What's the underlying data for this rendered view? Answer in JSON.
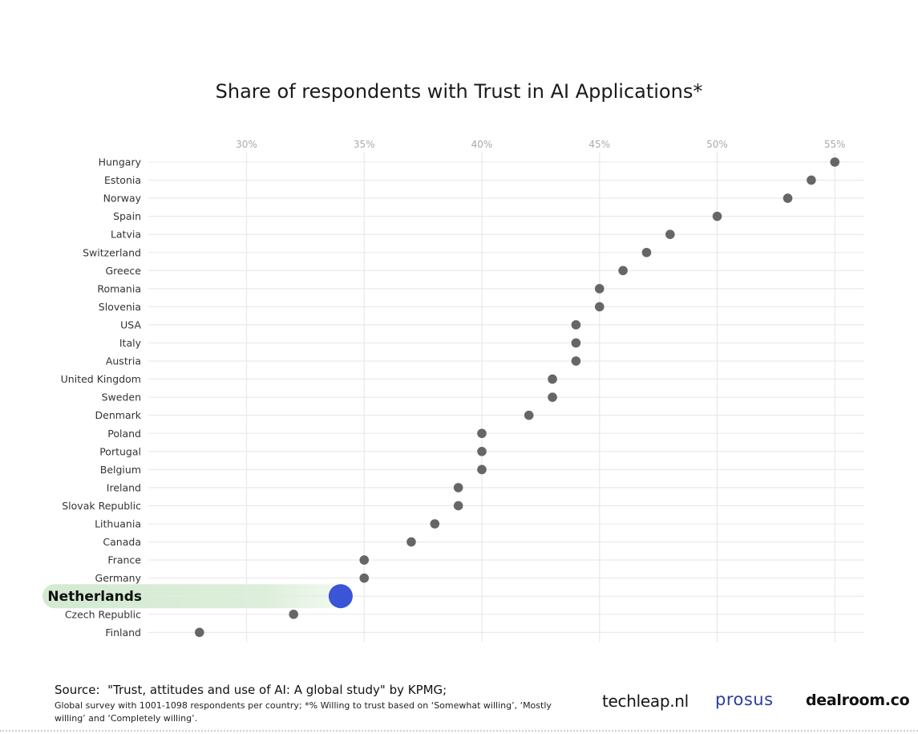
{
  "chart_data": {
    "type": "scatter",
    "title": "Share of respondents with Trust in AI Applications*",
    "xlabel": "",
    "ylabel": "",
    "xlim": [
      25,
      56
    ],
    "x_ticks": [
      "30%",
      "35%",
      "40%",
      "45%",
      "50%",
      "55%"
    ],
    "x_tick_values": [
      30,
      35,
      40,
      45,
      50,
      55
    ],
    "grid": true,
    "highlight": "Netherlands",
    "colors": {
      "point": "#666666",
      "highlight_point": "#3b55d9",
      "highlight_band": "#d7ecd5",
      "grid": "#e8e8e8",
      "tick": "#aaaaaa",
      "label": "#333333"
    },
    "categories": [
      "Hungary",
      "Estonia",
      "Norway",
      "Spain",
      "Latvia",
      "Switzerland",
      "Greece",
      "Romania",
      "Slovenia",
      "USA",
      "Italy",
      "Austria",
      "United Kingdom",
      "Sweden",
      "Denmark",
      "Poland",
      "Portugal",
      "Belgium",
      "Ireland",
      "Slovak Republic",
      "Lithuania",
      "Canada",
      "France",
      "Germany",
      "Netherlands",
      "Czech Republic",
      "Finland"
    ],
    "values": [
      55,
      54,
      53,
      50,
      48,
      47,
      46,
      45,
      45,
      44,
      44,
      44,
      43,
      43,
      42,
      40,
      40,
      40,
      39,
      39,
      38,
      37,
      35,
      35,
      34,
      32,
      28
    ]
  },
  "footer": {
    "source": "Source:  \"Trust, attitudes and use of AI: A global study\" by KPMG;",
    "note": "Global survey with 1001-1098 respondents per country; *% Willing to trust based on ‘Somewhat willing’, ‘Mostly willing’ and ‘Completely willing’."
  },
  "logos": {
    "techleap": "techleap.nl",
    "prosus": "prosus",
    "dealroom": "dealroom.co"
  }
}
